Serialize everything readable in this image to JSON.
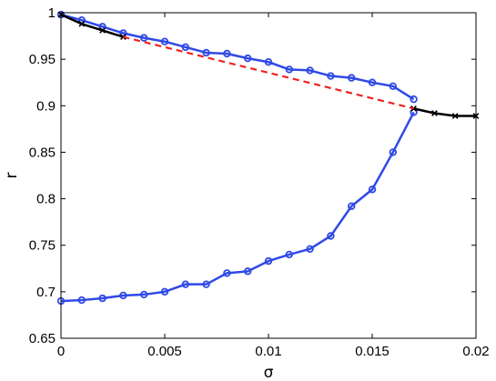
{
  "chart_data": {
    "type": "line",
    "xlabel": "σ",
    "ylabel": "r",
    "xlim": [
      0,
      0.02
    ],
    "ylim": [
      0.65,
      1
    ],
    "grid": false,
    "x_ticks": [
      0,
      0.005,
      0.01,
      0.015,
      0.02
    ],
    "x_tick_labels": [
      "0",
      "0.005",
      "0.01",
      "0.015",
      "0.02"
    ],
    "y_ticks": [
      0.65,
      0.7,
      0.75,
      0.8,
      0.85,
      0.9,
      0.95,
      1
    ],
    "y_tick_labels": [
      "0.65",
      "0.7",
      "0.75",
      "0.8",
      "0.85",
      "0.9",
      "0.95",
      "1"
    ],
    "series": [
      {
        "color": "#2f49e6",
        "marker": "circle",
        "line_style": "solid",
        "x": [
          0,
          0.001,
          0.002,
          0.003,
          0.004,
          0.005,
          0.006,
          0.007,
          0.008,
          0.009,
          0.01,
          0.011,
          0.012,
          0.013,
          0.014,
          0.015,
          0.016,
          0.017
        ],
        "y": [
          0.998,
          0.992,
          0.985,
          0.978,
          0.973,
          0.969,
          0.963,
          0.957,
          0.956,
          0.951,
          0.947,
          0.939,
          0.938,
          0.932,
          0.93,
          0.925,
          0.921,
          0.907
        ]
      },
      {
        "color": "#2f49e6",
        "marker": "circle",
        "line_style": "solid",
        "x": [
          0,
          0.001,
          0.002,
          0.003,
          0.004,
          0.005,
          0.006,
          0.007,
          0.008,
          0.009,
          0.01,
          0.011,
          0.012,
          0.013,
          0.014,
          0.015,
          0.016,
          0.017
        ],
        "y": [
          0.69,
          0.691,
          0.693,
          0.696,
          0.697,
          0.7,
          0.708,
          0.708,
          0.72,
          0.722,
          0.733,
          0.74,
          0.746,
          0.76,
          0.792,
          0.81,
          0.85,
          0.893
        ]
      },
      {
        "color": "#000000",
        "marker": "x",
        "line_style": "solid",
        "x": [
          0,
          0.001,
          0.002,
          0.003
        ],
        "y": [
          0.998,
          0.988,
          0.981,
          0.974
        ]
      },
      {
        "color": "#000000",
        "marker": "x",
        "line_style": "solid",
        "x": [
          0.017,
          0.018,
          0.019,
          0.02
        ],
        "y": [
          0.897,
          0.892,
          0.889,
          0.889
        ]
      },
      {
        "color": "#ee2222",
        "marker": "none",
        "line_style": "dashed",
        "x": [
          0.003,
          0.017
        ],
        "y": [
          0.974,
          0.897
        ]
      }
    ]
  }
}
